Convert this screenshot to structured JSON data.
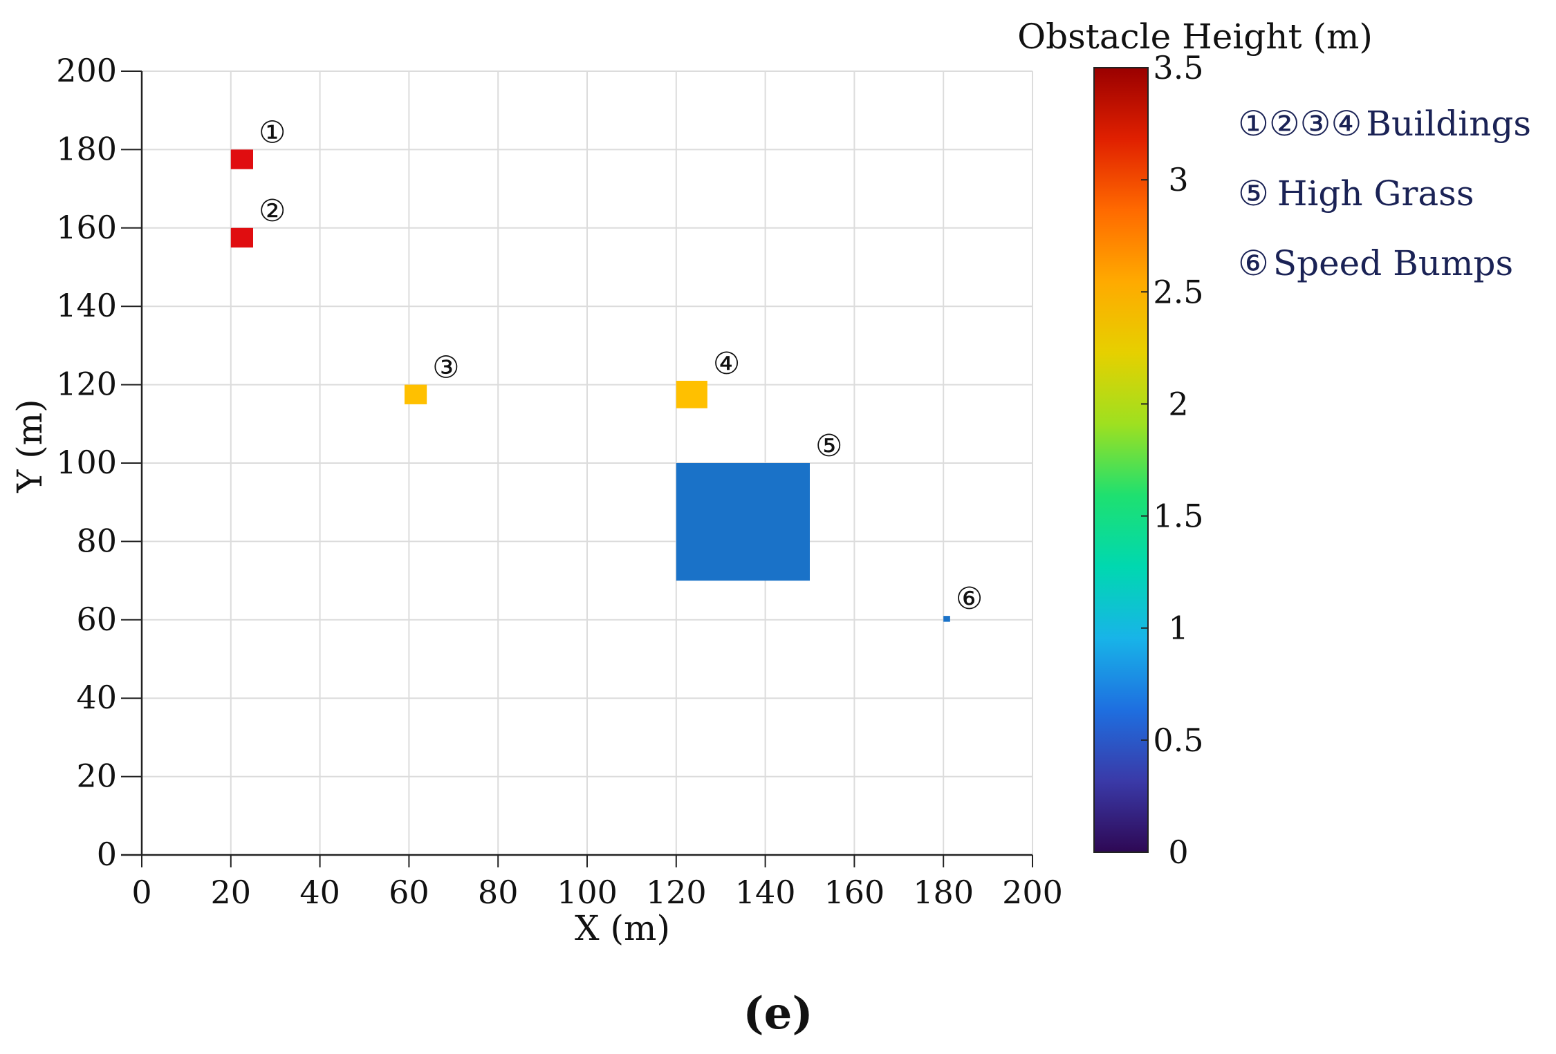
{
  "chart_data": {
    "type": "heatmap",
    "title": "",
    "xlabel": "X (m)",
    "ylabel": "Y (m)",
    "xlim": [
      0,
      200
    ],
    "ylim": [
      0,
      200
    ],
    "xticks": [
      "0",
      "20",
      "40",
      "60",
      "80",
      "100",
      "120",
      "140",
      "160",
      "180",
      "200"
    ],
    "yticks": [
      "0",
      "20",
      "40",
      "60",
      "80",
      "100",
      "120",
      "140",
      "160",
      "180",
      "200"
    ],
    "grid": true,
    "colorbar": {
      "title": "Obstacle Height (m)",
      "range": [
        0,
        3.5
      ],
      "ticks": [
        "0",
        "0.5",
        "1",
        "1.5",
        "2",
        "2.5",
        "3",
        "3.5"
      ],
      "colormap": [
        "#2e0854",
        "#3a3aa8",
        "#1e6fe0",
        "#18b4e8",
        "#00d8b0",
        "#1ee070",
        "#9ee020",
        "#e6d000",
        "#ffaa00",
        "#ff6a00",
        "#e02000",
        "#9a0000"
      ]
    },
    "obstacles": [
      {
        "marker": "①",
        "category": "Buildings",
        "x": [
          20,
          25
        ],
        "y": [
          175,
          180
        ],
        "height": 3.2,
        "color": "#e00d10"
      },
      {
        "marker": "②",
        "category": "Buildings",
        "x": [
          20,
          25
        ],
        "y": [
          155,
          160
        ],
        "height": 3.2,
        "color": "#e00d10"
      },
      {
        "marker": "③",
        "category": "Buildings",
        "x": [
          59,
          64
        ],
        "y": [
          115,
          120
        ],
        "height": 2.4,
        "color": "#ffc000"
      },
      {
        "marker": "④",
        "category": "Buildings",
        "x": [
          120,
          127
        ],
        "y": [
          114,
          121
        ],
        "height": 2.4,
        "color": "#ffc000"
      },
      {
        "marker": "⑤",
        "category": "High Grass",
        "x": [
          120,
          150
        ],
        "y": [
          70,
          100
        ],
        "height": 0.6,
        "color": "#1a72c8"
      },
      {
        "marker": "⑥",
        "category": "Speed Bumps",
        "x": [
          180,
          181.5
        ],
        "y": [
          59.5,
          61
        ],
        "height": 0.6,
        "color": "#1a72c8"
      }
    ]
  },
  "legend": {
    "entries": [
      {
        "markers": "①②③④",
        "label": "Buildings"
      },
      {
        "markers": "⑤",
        "label": "High Grass"
      },
      {
        "markers": "⑥",
        "label": "Speed Bumps"
      }
    ]
  },
  "panel_label": "(e)"
}
